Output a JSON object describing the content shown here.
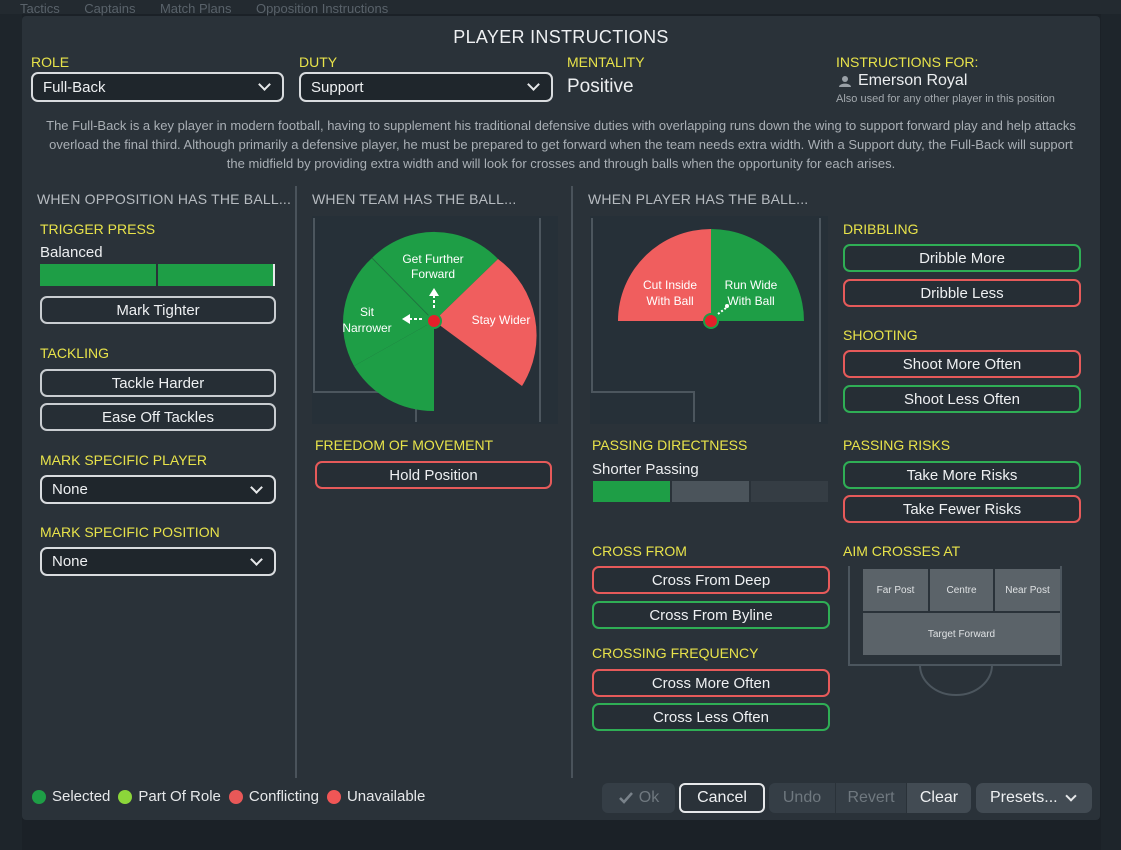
{
  "background": {
    "tabs": [
      "Tactics",
      "Captains",
      "Match Plans",
      "Opposition Instructions"
    ]
  },
  "dialog": {
    "title": "PLAYER INSTRUCTIONS",
    "role": {
      "label": "ROLE",
      "value": "Full-Back"
    },
    "duty": {
      "label": "DUTY",
      "value": "Support"
    },
    "mentality": {
      "label": "MENTALITY",
      "value": "Positive"
    },
    "instructions_for": {
      "label": "INSTRUCTIONS FOR:",
      "player": "Emerson Royal",
      "note": "Also used for any other player in this position"
    },
    "description": "The Full-Back is a key player in modern football, having to supplement his traditional defensive duties with overlapping runs down the wing to support forward play and help attacks overload the final third. Although primarily a defensive player, he must be prepared to get forward when the team needs extra width. With a Support duty, the Full-Back will support the midfield by providing extra width and will look for crosses and through balls when the opportunity for each arises."
  },
  "opposition": {
    "heading": "WHEN OPPOSITION HAS THE BALL...",
    "trigger_press": {
      "label": "TRIGGER PRESS",
      "value": "Balanced",
      "level": 0.5
    },
    "mark_tighter": "Mark Tighter",
    "tackling": {
      "label": "TACKLING",
      "harder": "Tackle Harder",
      "ease": "Ease Off Tackles"
    },
    "mark_player": {
      "label": "MARK SPECIFIC PLAYER",
      "value": "None"
    },
    "mark_position": {
      "label": "MARK SPECIFIC POSITION",
      "value": "None"
    }
  },
  "team": {
    "heading": "WHEN TEAM HAS THE BALL...",
    "pitch": {
      "forward": [
        "Get Further",
        "Forward"
      ],
      "narrower": [
        "Sit",
        "Narrower"
      ],
      "wider": "Stay Wider"
    },
    "freedom": {
      "label": "FREEDOM OF MOVEMENT",
      "hold": "Hold Position"
    }
  },
  "player": {
    "heading": "WHEN PLAYER HAS THE BALL...",
    "pitch": {
      "cut_inside": [
        "Cut Inside",
        "With Ball"
      ],
      "run_wide": [
        "Run Wide",
        "With Ball"
      ]
    },
    "passing_directness": {
      "label": "PASSING DIRECTNESS",
      "value": "Shorter Passing",
      "level": 1
    },
    "cross_from": {
      "label": "CROSS FROM",
      "deep": "Cross From Deep",
      "byline": "Cross From Byline"
    },
    "crossing_frequency": {
      "label": "CROSSING FREQUENCY",
      "more": "Cross More Often",
      "less": "Cross Less Often"
    },
    "dribbling": {
      "label": "DRIBBLING",
      "more": "Dribble More",
      "less": "Dribble Less"
    },
    "shooting": {
      "label": "SHOOTING",
      "more": "Shoot More Often",
      "less": "Shoot Less Often"
    },
    "passing_risks": {
      "label": "PASSING RISKS",
      "more": "Take More Risks",
      "fewer": "Take Fewer Risks"
    },
    "aim_crosses": {
      "label": "AIM CROSSES AT",
      "far": "Far Post",
      "centre": "Centre",
      "near": "Near Post",
      "target": "Target Forward"
    }
  },
  "legend": {
    "selected": "Selected",
    "part_of_role": "Part Of Role",
    "conflicting": "Conflicting",
    "unavailable": "Unavailable"
  },
  "colors": {
    "selected": "#1e9e46",
    "part_of_role": "#8cd63a",
    "conflicting": "#e85858",
    "unavailable": "#f05656"
  },
  "footer": {
    "ok": "Ok",
    "cancel": "Cancel",
    "undo": "Undo",
    "revert": "Revert",
    "clear": "Clear",
    "presets": "Presets..."
  }
}
